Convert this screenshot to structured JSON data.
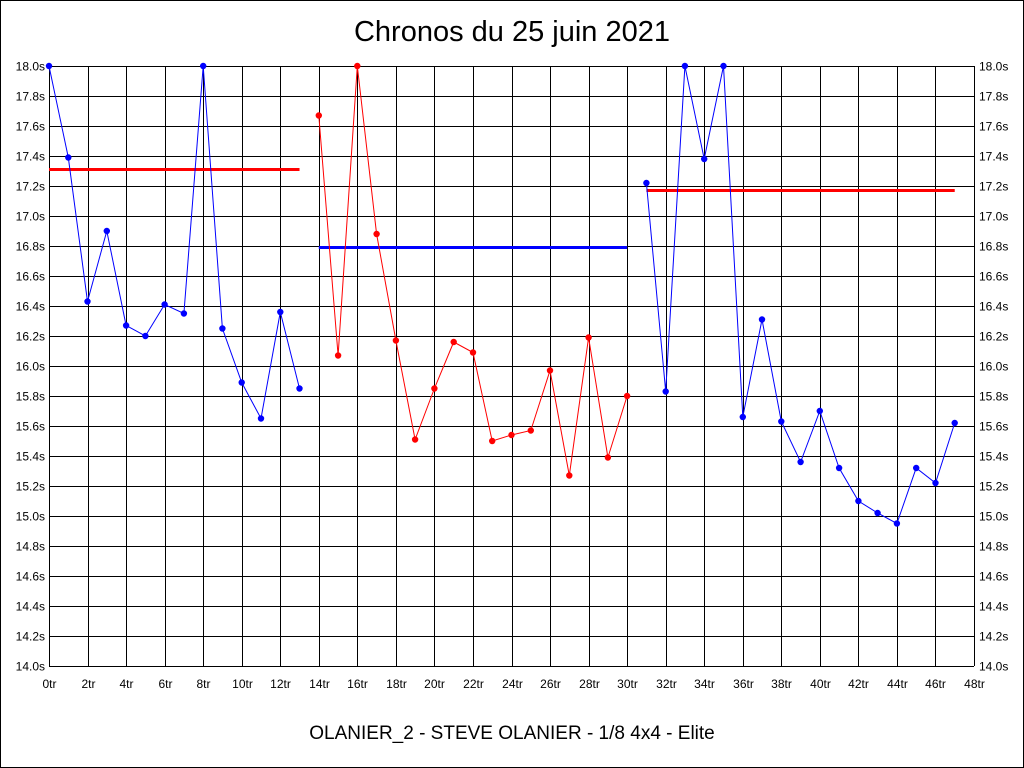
{
  "title": "Chronos du 25 juin 2021",
  "caption": "OLANIER_2 - STEVE OLANIER - 1/8 4x4 - Elite",
  "colors": {
    "red": "#ff0000",
    "blue": "#0000ff",
    "grid": "#000000"
  },
  "chart_data": {
    "type": "line",
    "title": "Chronos du 25 juin 2021",
    "xlabel": "",
    "ylabel": "",
    "xlim": [
      0,
      48
    ],
    "ylim": [
      14.0,
      18.0
    ],
    "grid": true,
    "x_tick_labels": [
      "0tr",
      "2tr",
      "4tr",
      "6tr",
      "8tr",
      "10tr",
      "12tr",
      "14tr",
      "16tr",
      "18tr",
      "20tr",
      "22tr",
      "24tr",
      "26tr",
      "28tr",
      "30tr",
      "32tr",
      "34tr",
      "36tr",
      "38tr",
      "40tr",
      "42tr",
      "44tr",
      "46tr",
      "48tr"
    ],
    "y_tick_labels": [
      "14.0s",
      "14.2s",
      "14.4s",
      "14.6s",
      "14.8s",
      "15.0s",
      "15.2s",
      "15.4s",
      "15.6s",
      "15.8s",
      "16.0s",
      "16.2s",
      "16.4s",
      "16.6s",
      "16.8s",
      "17.0s",
      "17.2s",
      "17.4s",
      "17.6s",
      "17.8s",
      "18.0s"
    ],
    "y_ticks": [
      14.0,
      14.2,
      14.4,
      14.6,
      14.8,
      15.0,
      15.2,
      15.4,
      15.6,
      15.8,
      16.0,
      16.2,
      16.4,
      16.6,
      16.8,
      17.0,
      17.2,
      17.4,
      17.6,
      17.8,
      18.0
    ],
    "series": [
      {
        "color": "#0000ff",
        "x": [
          0,
          1,
          2,
          3,
          4,
          5,
          6,
          7,
          8,
          9,
          10,
          11,
          12,
          13
        ],
        "values": [
          18.0,
          17.39,
          16.43,
          16.9,
          16.27,
          16.2,
          16.41,
          16.35,
          18.0,
          16.25,
          15.89,
          15.65,
          16.36,
          15.85
        ]
      },
      {
        "color": "#ff0000",
        "x": [
          14,
          15,
          16,
          17,
          18,
          19,
          20,
          21,
          22,
          23,
          24,
          25,
          26,
          27,
          28,
          29,
          30
        ],
        "values": [
          17.67,
          16.07,
          18.0,
          16.88,
          16.17,
          15.51,
          15.85,
          16.16,
          16.09,
          15.5,
          15.54,
          15.57,
          15.97,
          15.27,
          16.19,
          15.39,
          15.8
        ]
      },
      {
        "color": "#0000ff",
        "x": [
          31,
          32,
          33,
          34,
          35,
          36,
          37,
          38,
          39,
          40,
          41,
          42,
          43,
          44,
          45,
          46,
          47
        ],
        "values": [
          17.22,
          15.83,
          18.0,
          17.38,
          18.0,
          15.66,
          16.31,
          15.63,
          15.36,
          15.7,
          15.32,
          15.1,
          15.02,
          14.95,
          15.32,
          15.22,
          15.62
        ]
      }
    ],
    "averages": [
      {
        "color": "#ff0000",
        "x": [
          0,
          13
        ],
        "value": 17.31
      },
      {
        "color": "#0000ff",
        "x": [
          14,
          30
        ],
        "value": 16.79
      },
      {
        "color": "#ff0000",
        "x": [
          31,
          47
        ],
        "value": 17.17
      }
    ]
  }
}
